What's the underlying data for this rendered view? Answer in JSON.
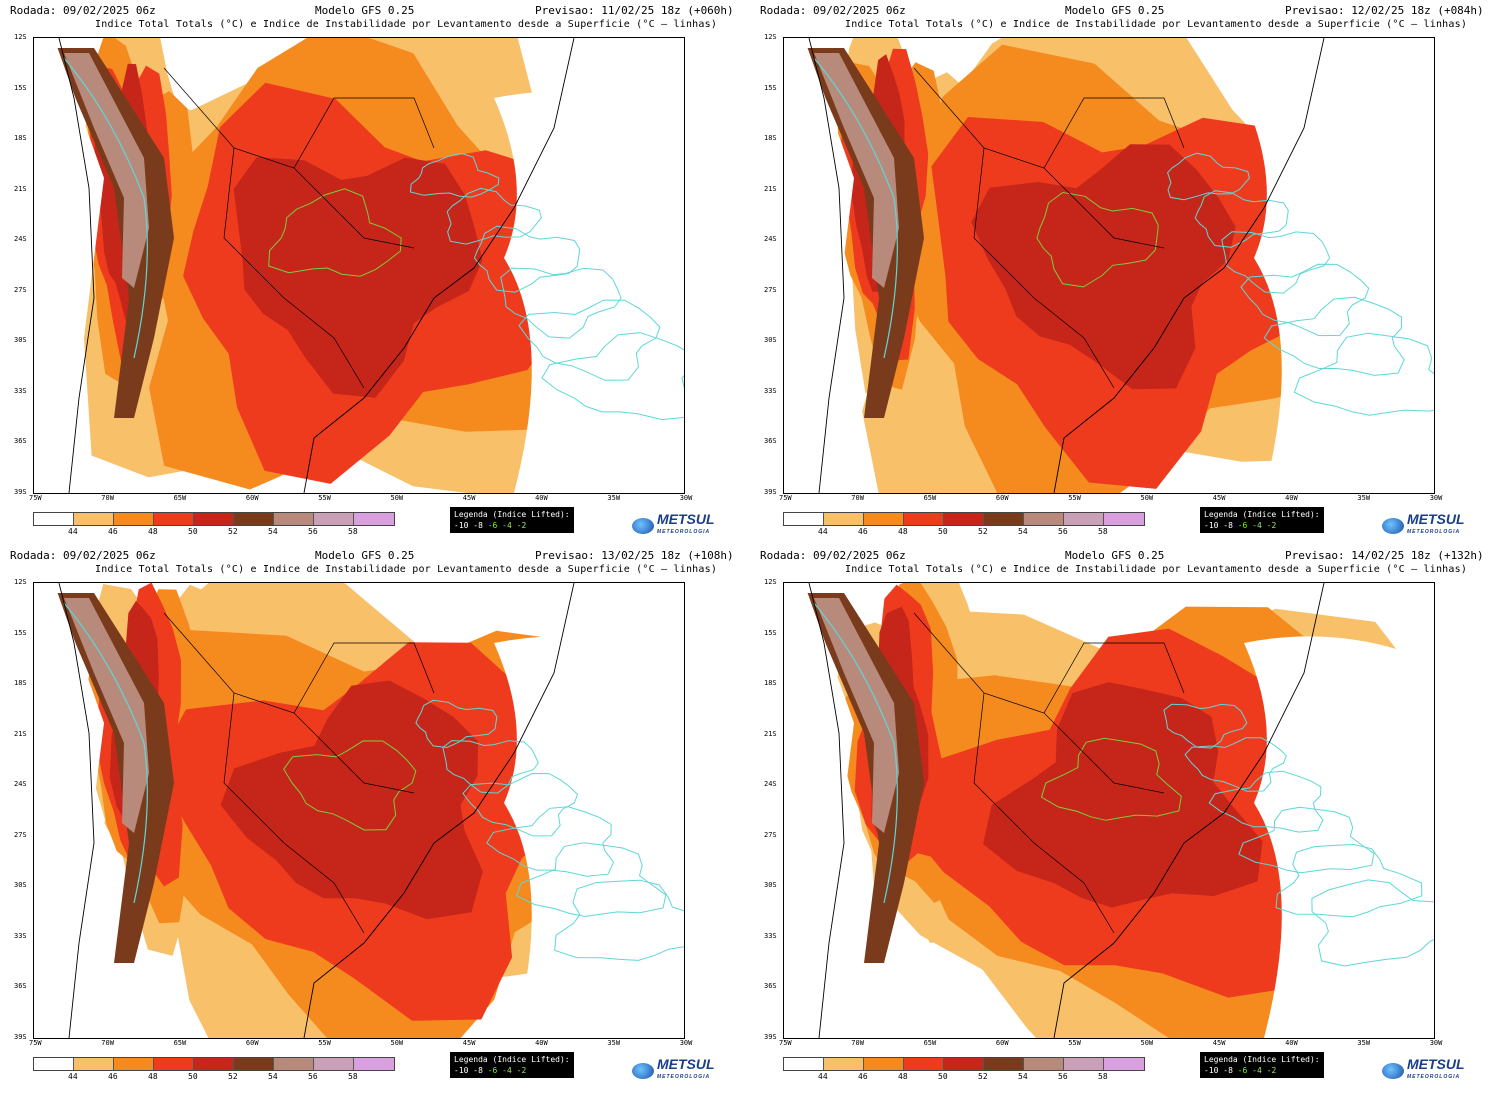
{
  "panels": [
    {
      "run": "Rodada: 09/02/2025 06z",
      "model": "Modelo GFS 0.25",
      "forecast": "Previsao: 11/02/25 18z (+060h)"
    },
    {
      "run": "Rodada: 09/02/2025 06z",
      "model": "Modelo GFS 0.25",
      "forecast": "Previsao: 12/02/25 18z (+084h)"
    },
    {
      "run": "Rodada: 09/02/2025 06z",
      "model": "Modelo GFS 0.25",
      "forecast": "Previsao: 13/02/25 18z (+108h)"
    },
    {
      "run": "Rodada: 09/02/2025 06z",
      "model": "Modelo GFS 0.25",
      "forecast": "Previsao: 14/02/25 18z (+132h)"
    }
  ],
  "subtitle": "Indice Total Totals (°C) e Indice de Instabilidade por Levantamento desde a Superficie (°C — linhas)",
  "lat_labels": [
    "12S",
    "15S",
    "18S",
    "21S",
    "24S",
    "27S",
    "30S",
    "33S",
    "36S",
    "39S"
  ],
  "lon_labels": [
    "75W",
    "70W",
    "65W",
    "60W",
    "55W",
    "50W",
    "45W",
    "40W",
    "35W",
    "30W"
  ],
  "colorbar": {
    "labels": [
      "44",
      "46",
      "48",
      "50",
      "52",
      "54",
      "56",
      "58"
    ],
    "colors": [
      "#ffffff",
      "#f9c06a",
      "#f58a1f",
      "#ee3b1e",
      "#c62519",
      "#7a3b1c",
      "#b88a7c",
      "#c9a0b8",
      "#d9a0e0"
    ]
  },
  "legend": {
    "title": "Legenda (Indice Lifted):",
    "values": [
      "-10",
      "-8",
      "-6",
      "-4",
      "-2"
    ]
  },
  "logo": {
    "name": "METSUL",
    "tagline": "METEOROLOGIA"
  },
  "colors": {
    "coast": "#000000",
    "lifted_lines": "#5fd7d7",
    "lifted_green": "#7ccd3a"
  }
}
